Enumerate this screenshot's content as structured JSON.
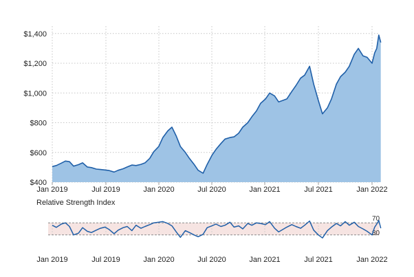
{
  "chart_data": [
    {
      "type": "area",
      "title": "",
      "xlabel": "",
      "ylabel": "",
      "ylim": [
        400,
        1450
      ],
      "grid": true,
      "x_ticks": [
        "Jan 2019",
        "Jul 2019",
        "Jan 2020",
        "Jul 2020",
        "Jan 2021",
        "Jul 2021",
        "Jan 2022"
      ],
      "y_ticks": [
        {
          "value": 400,
          "label": "$400"
        },
        {
          "value": 600,
          "label": "$600"
        },
        {
          "value": 800,
          "label": "$800"
        },
        {
          "value": 1000,
          "label": "$1,000"
        },
        {
          "value": 1200,
          "label": "$1,200"
        },
        {
          "value": 1400,
          "label": "$1,400"
        }
      ],
      "series": [
        {
          "x": [
            "2019-01-01",
            "2019-01-15",
            "2019-02-01",
            "2019-02-15",
            "2019-03-01",
            "2019-03-15",
            "2019-04-01",
            "2019-04-15",
            "2019-05-01",
            "2019-05-15",
            "2019-06-01",
            "2019-06-15",
            "2019-07-01",
            "2019-07-15",
            "2019-08-01",
            "2019-08-15",
            "2019-09-01",
            "2019-09-15",
            "2019-10-01",
            "2019-10-15",
            "2019-11-01",
            "2019-11-15",
            "2019-12-01",
            "2019-12-15",
            "2020-01-01",
            "2020-01-15",
            "2020-02-01",
            "2020-02-15",
            "2020-03-01",
            "2020-03-15",
            "2020-04-01",
            "2020-04-15",
            "2020-05-01",
            "2020-05-15",
            "2020-06-01",
            "2020-06-15",
            "2020-07-01",
            "2020-07-15",
            "2020-08-01",
            "2020-08-15",
            "2020-09-01",
            "2020-09-15",
            "2020-10-01",
            "2020-10-15",
            "2020-11-01",
            "2020-11-15",
            "2020-12-01",
            "2020-12-15",
            "2021-01-01",
            "2021-01-15",
            "2021-02-01",
            "2021-02-15",
            "2021-03-01",
            "2021-03-15",
            "2021-04-01",
            "2021-04-15",
            "2021-05-01",
            "2021-05-15",
            "2021-06-01",
            "2021-06-15",
            "2021-07-01",
            "2021-07-15",
            "2021-08-01",
            "2021-08-15",
            "2021-09-01",
            "2021-09-15",
            "2021-10-01",
            "2021-10-15",
            "2021-11-01",
            "2021-11-15",
            "2021-12-01",
            "2021-12-15",
            "2022-01-01",
            "2022-01-10",
            "2022-01-17",
            "2022-01-24",
            "2022-01-31"
          ],
          "values": [
            505,
            512,
            528,
            542,
            538,
            508,
            518,
            530,
            502,
            498,
            488,
            485,
            482,
            478,
            468,
            480,
            490,
            502,
            515,
            512,
            520,
            530,
            560,
            605,
            640,
            700,
            745,
            770,
            710,
            640,
            600,
            560,
            520,
            480,
            460,
            520,
            580,
            620,
            660,
            690,
            700,
            705,
            730,
            770,
            800,
            840,
            880,
            930,
            960,
            1000,
            980,
            940,
            950,
            960,
            1010,
            1050,
            1100,
            1120,
            1180,
            1060,
            950,
            860,
            900,
            960,
            1060,
            1110,
            1140,
            1180,
            1260,
            1300,
            1250,
            1240,
            1200,
            1270,
            1300,
            1390,
            1340
          ]
        }
      ]
    },
    {
      "type": "line",
      "title": "Relative Strength Index",
      "xlabel": "",
      "ylabel": "",
      "ylim": [
        0,
        100
      ],
      "x_ticks": [
        "Jan 2019",
        "Jul 2019",
        "Jan 2020",
        "Jul 2020",
        "Jan 2021",
        "Jul 2021",
        "Jan 2022"
      ],
      "bands": [
        {
          "value": 70,
          "label": "70"
        },
        {
          "value": 30,
          "label": "30"
        }
      ],
      "series": [
        {
          "x": [
            "2019-01-01",
            "2019-01-15",
            "2019-02-01",
            "2019-02-15",
            "2019-03-01",
            "2019-03-15",
            "2019-04-01",
            "2019-04-15",
            "2019-05-01",
            "2019-05-15",
            "2019-06-01",
            "2019-06-15",
            "2019-07-01",
            "2019-07-15",
            "2019-08-01",
            "2019-08-15",
            "2019-09-01",
            "2019-09-15",
            "2019-10-01",
            "2019-10-15",
            "2019-11-01",
            "2019-11-15",
            "2019-12-01",
            "2019-12-15",
            "2020-01-01",
            "2020-01-15",
            "2020-02-01",
            "2020-02-15",
            "2020-03-01",
            "2020-03-15",
            "2020-04-01",
            "2020-04-15",
            "2020-05-01",
            "2020-05-15",
            "2020-06-01",
            "2020-06-15",
            "2020-07-01",
            "2020-07-15",
            "2020-08-01",
            "2020-08-15",
            "2020-09-01",
            "2020-09-15",
            "2020-10-01",
            "2020-10-15",
            "2020-11-01",
            "2020-11-15",
            "2020-12-01",
            "2020-12-15",
            "2021-01-01",
            "2021-01-15",
            "2021-02-01",
            "2021-02-15",
            "2021-03-01",
            "2021-03-15",
            "2021-04-01",
            "2021-04-15",
            "2021-05-01",
            "2021-05-15",
            "2021-06-01",
            "2021-06-15",
            "2021-07-01",
            "2021-07-15",
            "2021-08-01",
            "2021-08-15",
            "2021-09-01",
            "2021-09-15",
            "2021-10-01",
            "2021-10-15",
            "2021-11-01",
            "2021-11-15",
            "2021-12-01",
            "2021-12-15",
            "2022-01-01",
            "2022-01-10",
            "2022-01-17",
            "2022-01-24",
            "2022-01-31"
          ],
          "values": [
            62,
            55,
            66,
            70,
            58,
            30,
            36,
            54,
            42,
            38,
            46,
            52,
            56,
            48,
            34,
            46,
            54,
            58,
            44,
            62,
            52,
            58,
            64,
            70,
            72,
            74,
            68,
            60,
            40,
            22,
            44,
            38,
            30,
            24,
            32,
            54,
            60,
            66,
            58,
            62,
            72,
            56,
            60,
            50,
            68,
            62,
            70,
            68,
            64,
            74,
            52,
            40,
            48,
            56,
            64,
            58,
            52,
            62,
            76,
            46,
            30,
            20,
            44,
            56,
            68,
            60,
            74,
            62,
            72,
            58,
            50,
            42,
            30,
            56,
            66,
            78,
            52
          ]
        }
      ]
    }
  ]
}
